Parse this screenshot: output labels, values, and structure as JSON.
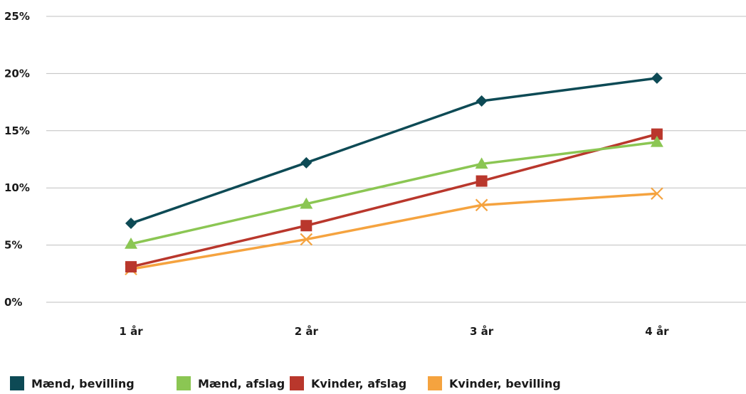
{
  "chart_data": {
    "type": "line",
    "title": "",
    "xlabel": "",
    "ylabel": "",
    "categories": [
      "1 år",
      "2 år",
      "3 år",
      "4 år"
    ],
    "y_ticks": [
      "0%",
      "5%",
      "10%",
      "15%",
      "20%",
      "25%"
    ],
    "ylim": [
      0,
      25
    ],
    "y_unit": "%",
    "grid": true,
    "legend_position": "bottom-left",
    "series": [
      {
        "name": "Mænd, bevilling",
        "values": [
          6.9,
          12.2,
          17.6,
          19.6
        ],
        "color": "#0d4a55",
        "marker": "diamond"
      },
      {
        "name": "Mænd, afslag",
        "values": [
          5.1,
          8.6,
          12.1,
          14.0
        ],
        "color": "#8bc653",
        "marker": "triangle"
      },
      {
        "name": "Kvinder, afslag",
        "values": [
          3.1,
          6.7,
          10.6,
          14.7
        ],
        "color": "#b9372c",
        "marker": "square"
      },
      {
        "name": "Kvinder, bevilling",
        "values": [
          2.9,
          5.5,
          8.5,
          9.5
        ],
        "color": "#f5a33f",
        "marker": "x"
      }
    ]
  }
}
